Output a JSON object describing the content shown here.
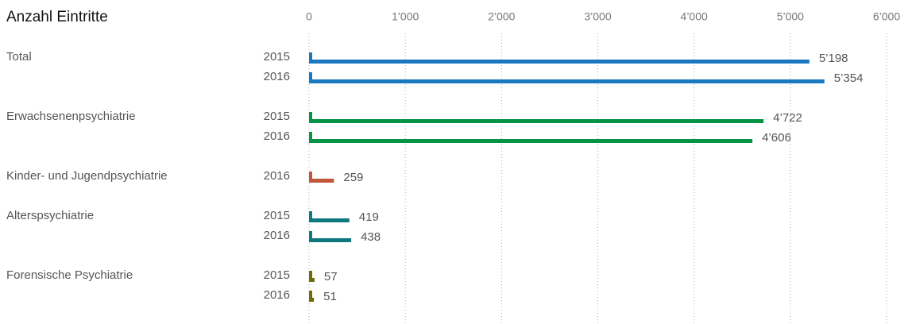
{
  "chart_data": {
    "type": "bar",
    "orientation": "horizontal",
    "title": "Anzahl Eintritte",
    "xlim": [
      0,
      6000
    ],
    "xticks": [
      0,
      {
        "value": 1000,
        "label": "1’000"
      },
      {
        "value": 2000,
        "label": "2’000"
      },
      {
        "value": 3000,
        "label": "3’000"
      },
      {
        "value": 4000,
        "label": "4’000"
      },
      {
        "value": 5000,
        "label": "5’000"
      },
      {
        "value": 6000,
        "label": "6’000"
      }
    ],
    "grid": true,
    "groups": [
      {
        "name": "Total",
        "color": "#1878c0",
        "categories": [
          "2015",
          "2016"
        ],
        "values": [
          5198,
          5354
        ],
        "value_labels": [
          "5’198",
          "5’354"
        ]
      },
      {
        "name": "Erwachsenenpsychiatrie",
        "color": "#079447",
        "categories": [
          "2015",
          "2016"
        ],
        "values": [
          4722,
          4606
        ],
        "value_labels": [
          "4’722",
          "4’606"
        ]
      },
      {
        "name": "Kinder- und Jugendpsychiatrie",
        "color": "#c0573a",
        "categories": [
          "2016"
        ],
        "values": [
          259
        ],
        "value_labels": [
          "259"
        ]
      },
      {
        "name": "Alterspsychiatrie",
        "color": "#0e7a80",
        "categories": [
          "2015",
          "2016"
        ],
        "values": [
          419,
          438
        ],
        "value_labels": [
          "419",
          "438"
        ]
      },
      {
        "name": "Forensische Psychiatrie",
        "color": "#6f6a0a",
        "categories": [
          "2015",
          "2016"
        ],
        "values": [
          57,
          51
        ],
        "value_labels": [
          "57",
          "51"
        ]
      }
    ]
  }
}
